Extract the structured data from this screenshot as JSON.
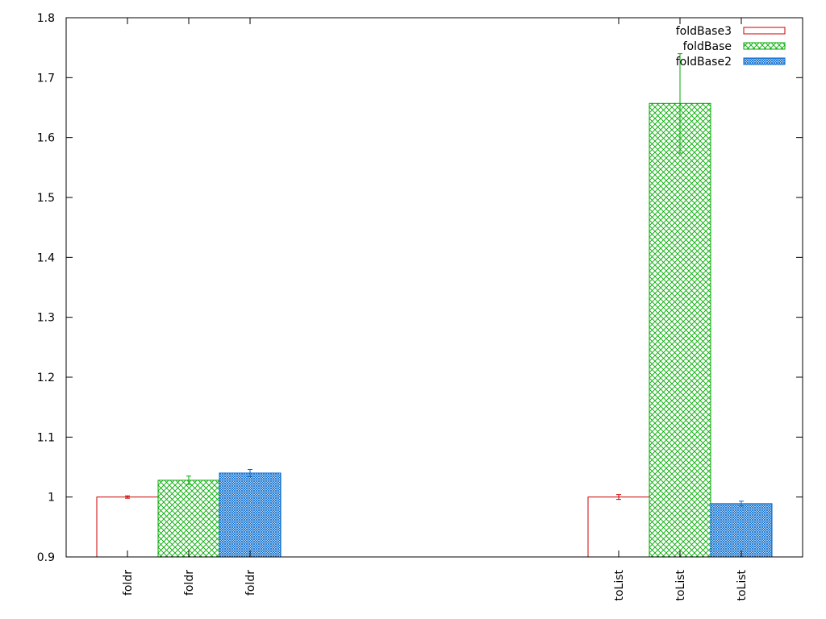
{
  "chart_data": {
    "type": "bar",
    "groups": [
      "foldr",
      "toList"
    ],
    "ylim": [
      0.9,
      1.8
    ],
    "yticks": [
      0.9,
      1.0,
      1.1,
      1.2,
      1.3,
      1.4,
      1.5,
      1.6,
      1.7,
      1.8
    ],
    "ytick_labels": [
      "0.9",
      "1",
      "1.1",
      "1.2",
      "1.3",
      "1.4",
      "1.5",
      "1.6",
      "1.7",
      "1.8"
    ],
    "legend_position": "top-right",
    "grid": false,
    "series": [
      {
        "name": "foldBase3",
        "color": "#cc0000",
        "fill": "empty",
        "values": [
          1.0,
          1.0
        ],
        "errors": [
          0.002,
          0.004
        ]
      },
      {
        "name": "foldBase",
        "color": "#00aa00",
        "fill": "crosshatch",
        "values": [
          1.028,
          1.657
        ],
        "errors": [
          0.007,
          0.083
        ]
      },
      {
        "name": "foldBase2",
        "color": "#0066cc",
        "fill": "dense-crosshatch",
        "values": [
          1.04,
          0.989
        ],
        "errors": [
          0.006,
          0.004
        ]
      }
    ],
    "xtick_labels": [
      [
        "foldr",
        "foldr",
        "foldr"
      ],
      [
        "toList",
        "toList",
        "toList"
      ]
    ]
  }
}
